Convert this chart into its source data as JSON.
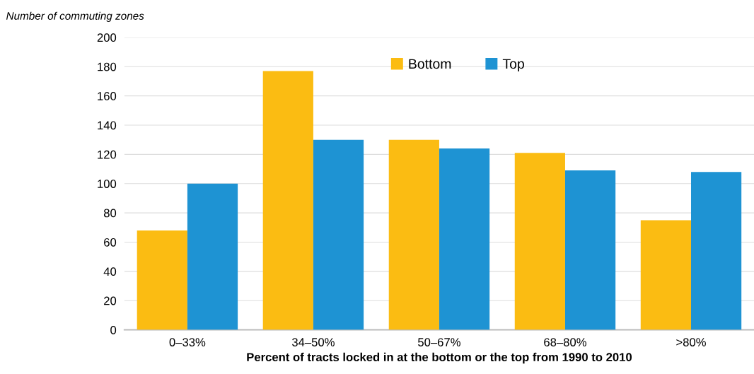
{
  "chart_data": {
    "type": "bar",
    "ylabel": "Number of commuting zones",
    "xlabel": "Percent of tracts locked in at the bottom or the top from 1990 to 2010",
    "categories": [
      "0–33%",
      "34–50%",
      "50–67%",
      "68–80%",
      ">80%"
    ],
    "series": [
      {
        "name": "Bottom",
        "color": "#fbbc12",
        "values": [
          68,
          177,
          130,
          121,
          75
        ]
      },
      {
        "name": "Top",
        "color": "#1e93d3",
        "values": [
          100,
          130,
          124,
          109,
          108
        ]
      }
    ],
    "ylim": [
      0,
      200
    ],
    "yticks": [
      0,
      20,
      40,
      60,
      80,
      100,
      120,
      140,
      160,
      180,
      200
    ],
    "grid": "y",
    "legend": "top"
  }
}
